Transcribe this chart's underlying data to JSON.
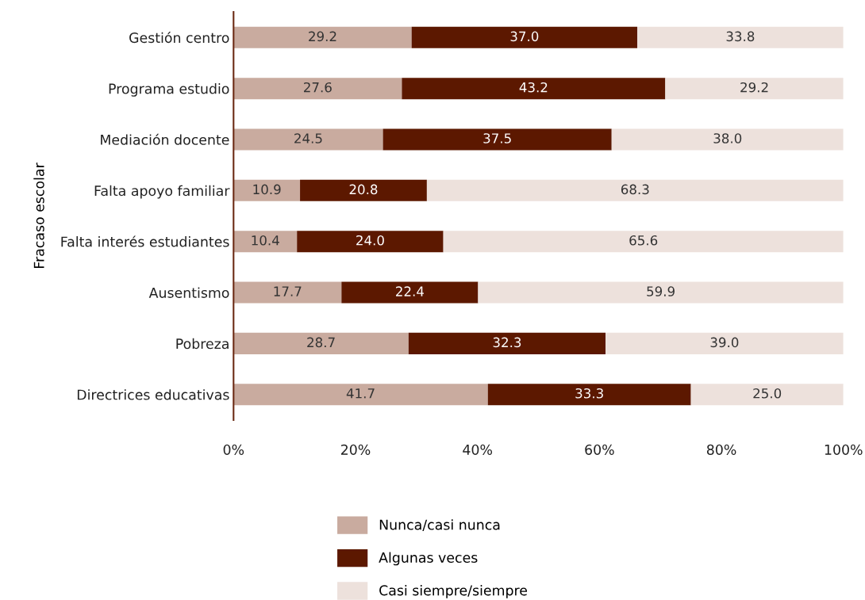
{
  "chart_data": {
    "type": "bar",
    "orientation": "horizontal",
    "stacked": true,
    "ylabel": "Fracaso escolar",
    "categories": [
      "Gestión centro",
      "Programa estudio",
      "Mediación docente",
      "Falta apoyo familiar",
      "Falta interés estudiantes",
      "Ausentismo",
      "Pobreza",
      "Directrices educativas"
    ],
    "series": [
      {
        "name": "Nunca/casi nunca",
        "color": "#c9ab9f",
        "values": [
          29.2,
          27.6,
          24.5,
          10.9,
          10.4,
          17.7,
          28.7,
          41.7
        ],
        "value_labels": [
          "29.2",
          "27.6",
          "24.5",
          "10.9",
          "10.4",
          "17.7",
          "28.7",
          "41.7"
        ]
      },
      {
        "name": "Algunas veces",
        "color": "#5c1800",
        "values": [
          37.0,
          43.2,
          37.5,
          20.8,
          24.0,
          22.4,
          32.3,
          33.3
        ],
        "value_labels": [
          "37.0",
          "43.2",
          "37.5",
          "20.8",
          "24.0",
          "22.4",
          "32.3",
          "33.3"
        ]
      },
      {
        "name": "Casi siempre/siempre",
        "color": "#ede1dc",
        "values": [
          33.8,
          29.2,
          38.0,
          68.3,
          65.6,
          59.9,
          39.0,
          25.0
        ],
        "value_labels": [
          "33.8",
          "29.2",
          "38.0",
          "68.3",
          "65.6",
          "59.9",
          "39.0",
          "25.0"
        ]
      }
    ],
    "xlim": [
      0,
      100
    ],
    "xticks": [
      {
        "value": 0,
        "label": "0%"
      },
      {
        "value": 20,
        "label": "20%"
      },
      {
        "value": 40,
        "label": "40%"
      },
      {
        "value": 60,
        "label": "60%"
      },
      {
        "value": 80,
        "label": "80%"
      },
      {
        "value": 100,
        "label": "100%"
      }
    ],
    "grid": false,
    "legend": "bottom"
  }
}
